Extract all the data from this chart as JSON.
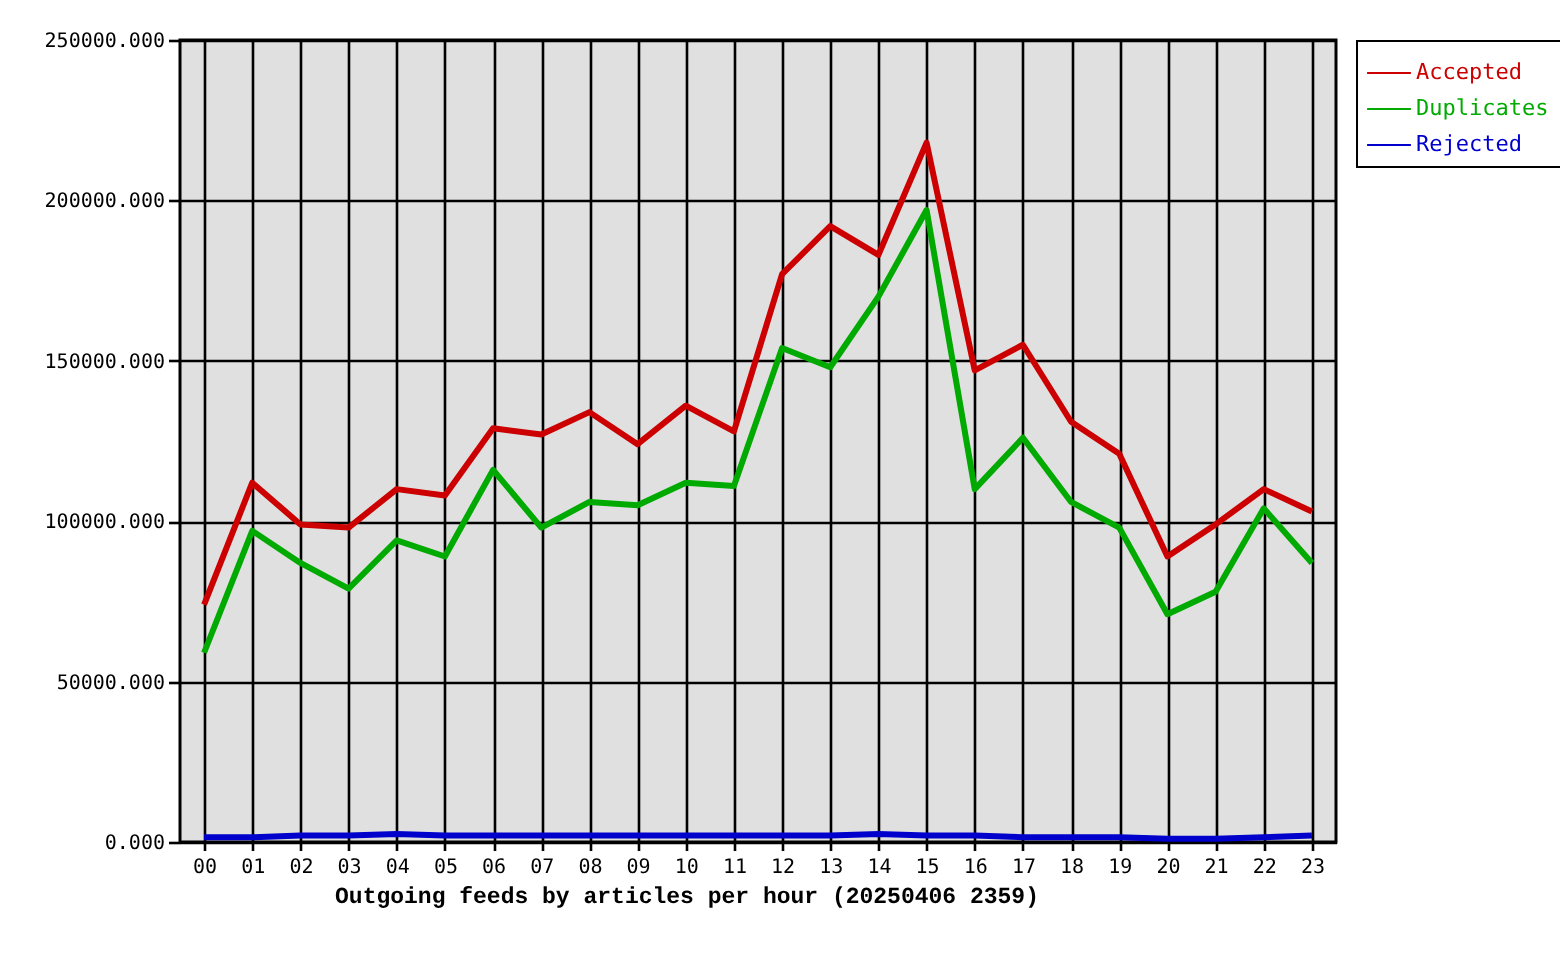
{
  "chart_data": {
    "type": "line",
    "xlabel": "Outgoing feeds by articles per hour (20250406 2359)",
    "categories": [
      "00",
      "01",
      "02",
      "03",
      "04",
      "05",
      "06",
      "07",
      "08",
      "09",
      "10",
      "11",
      "12",
      "13",
      "14",
      "15",
      "16",
      "17",
      "18",
      "19",
      "20",
      "21",
      "22",
      "23"
    ],
    "series": [
      {
        "name": "Accepted",
        "color": "#cc0000",
        "values": [
          74000,
          112000,
          99000,
          98000,
          110000,
          108000,
          129000,
          127000,
          134000,
          124000,
          136000,
          128000,
          177000,
          192000,
          183000,
          218000,
          147000,
          155000,
          131000,
          121000,
          89000,
          99000,
          110000,
          103000
        ]
      },
      {
        "name": "Duplicates",
        "color": "#00aa00",
        "values": [
          59000,
          97000,
          87000,
          79000,
          94000,
          89000,
          116000,
          98000,
          106000,
          105000,
          112000,
          111000,
          154000,
          148000,
          170000,
          197000,
          110000,
          126000,
          106000,
          98000,
          71000,
          78000,
          104000,
          87000
        ]
      },
      {
        "name": "Rejected",
        "color": "#0000cc",
        "values": [
          1500,
          1500,
          2000,
          2000,
          2500,
          2000,
          2000,
          2000,
          2000,
          2000,
          2000,
          2000,
          2000,
          2000,
          2500,
          2000,
          2000,
          1500,
          1500,
          1500,
          1000,
          1000,
          1500,
          2000
        ]
      }
    ],
    "ylim": [
      0,
      250000
    ],
    "yticks": [
      {
        "value": 0,
        "label": "0.000"
      },
      {
        "value": 50000,
        "label": "50000.000"
      },
      {
        "value": 100000,
        "label": "100000.000"
      },
      {
        "value": 150000,
        "label": "150000.000"
      },
      {
        "value": 200000,
        "label": "200000.000"
      },
      {
        "value": 250000,
        "label": "250000.000"
      }
    ],
    "grid": true,
    "legend": "top right"
  }
}
